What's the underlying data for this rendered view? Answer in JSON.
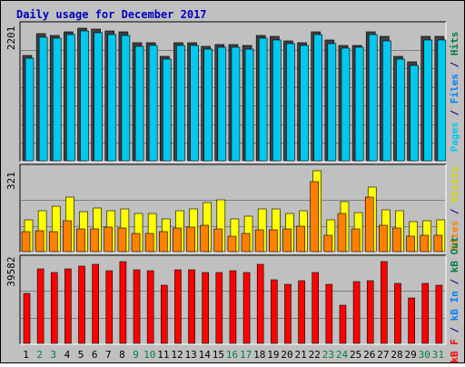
{
  "chart_data": {
    "type": "bar",
    "title": "Daily usage for December 2017",
    "categories": [
      "1",
      "2",
      "3",
      "4",
      "5",
      "6",
      "7",
      "8",
      "9",
      "10",
      "11",
      "12",
      "13",
      "14",
      "15",
      "16",
      "17",
      "18",
      "19",
      "20",
      "21",
      "22",
      "23",
      "24",
      "25",
      "26",
      "27",
      "28",
      "29",
      "30",
      "31"
    ],
    "weekend_days": [
      "2",
      "3",
      "9",
      "10",
      "16",
      "17",
      "23",
      "24",
      "30",
      "31"
    ],
    "panels": [
      {
        "id": "hits",
        "ymax": 2201,
        "ymax_label": "2201",
        "series": [
          {
            "name": "Hits",
            "color": "#008040",
            "values": [
              1746,
              2111,
              2077,
              2148,
              2201,
              2192,
              2153,
              2140,
              1959,
              1959,
              1735,
              1967,
              1954,
              1903,
              1937,
              1929,
              1917,
              2083,
              2062,
              1990,
              1966,
              2148,
              1998,
              1921,
              1922,
              2138,
              2059,
              1734,
              1650,
              2060,
              2060
            ]
          },
          {
            "name": "Files",
            "color": "#0080ff",
            "values": [
              1730,
              2080,
              2060,
              2120,
              2180,
              2160,
              2120,
              2110,
              1930,
              1940,
              1720,
              1950,
              1940,
              1880,
              1910,
              1910,
              1890,
              2060,
              2040,
              1970,
              1950,
              2120,
              1980,
              1900,
              1910,
              2120,
              2020,
              1720,
              1620,
              2040,
              2040
            ]
          }
        ],
        "bar_colors": [
          "#404040",
          "#00c8f0"
        ]
      },
      {
        "id": "sites",
        "ymax": 321,
        "ymax_label": "321",
        "series": [
          {
            "name": "Visits",
            "color": "#ffff00",
            "values": [
              127,
              164,
              179,
              218,
              158,
              172,
              163,
              170,
              153,
              150,
              129,
              163,
              170,
              195,
              205,
              131,
              142,
              169,
              169,
              152,
              164,
              321,
              126,
              199,
              155,
              257,
              167,
              164,
              118,
              121,
              127
            ]
          },
          {
            "name": "Sites",
            "color": "#ff8000",
            "values": [
              80,
              82,
              80,
              124,
              89,
              89,
              96,
              94,
              71,
              71,
              80,
              92,
              96,
              104,
              91,
              63,
              72,
              87,
              86,
              89,
              102,
              276,
              64,
              152,
              90,
              217,
              105,
              93,
              60,
              64,
              66
            ]
          }
        ],
        "bar_colors": [
          "#ffff00",
          "#ff8000"
        ]
      },
      {
        "id": "kbytes",
        "ymax": 39582,
        "ymax_label": "39582",
        "series": [
          {
            "name": "kB F",
            "color": "#ff0000",
            "values": [
              24100,
              36100,
              34500,
              36200,
              37600,
              38200,
              35300,
              39582,
              35500,
              35200,
              28000,
              35700,
              35600,
              34200,
              34100,
              35100,
              34400,
              38100,
              30900,
              28600,
              30500,
              34400,
              28700,
              18500,
              30100,
              30500,
              39582,
              29000,
              22100,
              29100,
              28100
            ]
          }
        ],
        "bar_colors": [
          "#ff0000"
        ]
      }
    ],
    "right_labels": {
      "hits": [
        {
          "text": "Pages",
          "color": "#00c8f0"
        },
        {
          "text": " / ",
          "color": "#000080"
        },
        {
          "text": "Files",
          "color": "#0080ff"
        },
        {
          "text": " / ",
          "color": "#000080"
        },
        {
          "text": "Hits",
          "color": "#008040"
        }
      ],
      "sites": [
        {
          "text": "Sites",
          "color": "#ff8000"
        },
        {
          "text": " / ",
          "color": "#000080"
        },
        {
          "text": "Visits",
          "color": "#d4d400"
        }
      ],
      "kbytes": [
        {
          "text": "kB F",
          "color": "#ff0000"
        },
        {
          "text": " / ",
          "color": "#000080"
        },
        {
          "text": "kB In",
          "color": "#0080ff"
        },
        {
          "text": " / ",
          "color": "#000080"
        },
        {
          "text": "kB Out",
          "color": "#008040"
        }
      ]
    },
    "colors": {
      "title": "#0000c0",
      "weekday_label": "#000000",
      "weekend_label": "#008040",
      "background": "#c0c0c0",
      "grid": "#808080"
    }
  }
}
